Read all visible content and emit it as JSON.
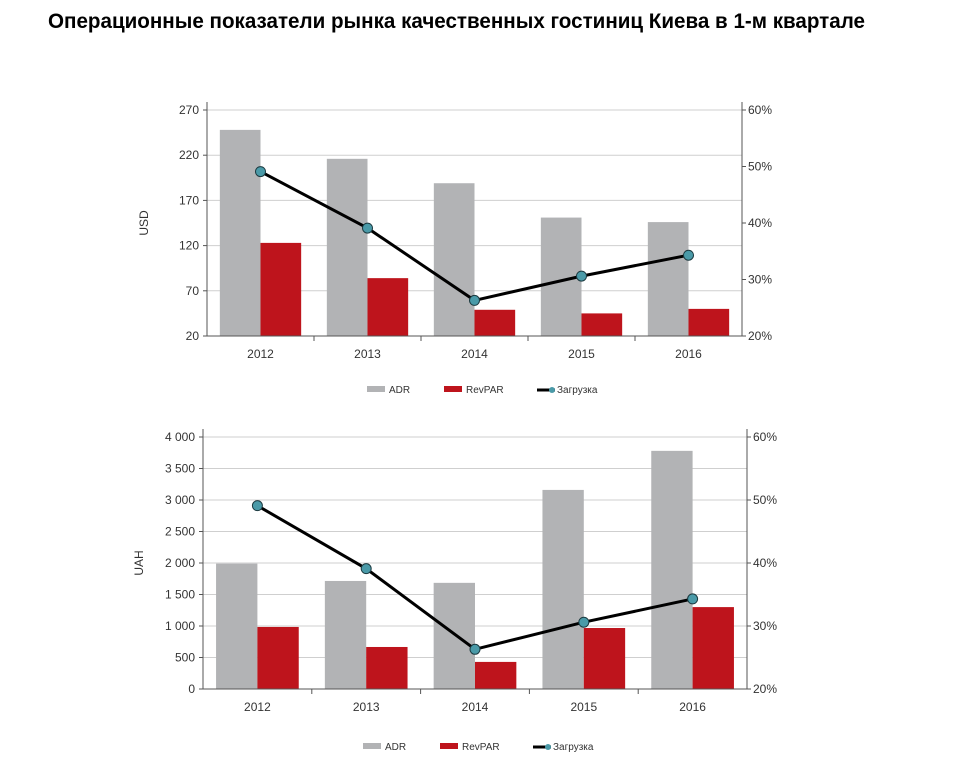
{
  "title": "Операционные показатели рынка качественных гостиниц Киева в 1-м квартале",
  "colors": {
    "adr": "#b2b3b5",
    "revpar": "#be141c",
    "load": "#000000",
    "marker": "#4a9aa8",
    "grid": "#cfcfcf"
  },
  "chart_data": [
    {
      "type": "bar",
      "title": "",
      "ylabel": "USD",
      "categories": [
        "2012",
        "2013",
        "2014",
        "2015",
        "2016"
      ],
      "ylim": [
        20,
        270
      ],
      "yticks": [
        20,
        70,
        120,
        170,
        220,
        270
      ],
      "ytick_labels": [
        "20",
        "70",
        "120",
        "170",
        "220",
        "270"
      ],
      "y2lim": [
        20,
        60
      ],
      "y2ticks": [
        20,
        30,
        40,
        50,
        60
      ],
      "y2tick_labels": [
        "20%",
        "30%",
        "40%",
        "50%",
        "60%"
      ],
      "grid": true,
      "legend_position": "bottom",
      "series": [
        {
          "name": "ADR",
          "type": "bar",
          "axis": "left",
          "values": [
            248,
            216,
            189,
            151,
            146
          ]
        },
        {
          "name": "RevPAR",
          "type": "bar",
          "axis": "left",
          "values": [
            123,
            84,
            49,
            45,
            50
          ]
        },
        {
          "name": "Загрузка",
          "type": "line",
          "axis": "right",
          "values": [
            49.1,
            39.1,
            26.3,
            30.6,
            34.3
          ]
        }
      ]
    },
    {
      "type": "bar",
      "title": "",
      "ylabel": "UAH",
      "categories": [
        "2012",
        "2013",
        "2014",
        "2015",
        "2016"
      ],
      "ylim": [
        0,
        4000
      ],
      "yticks": [
        0,
        500,
        1000,
        1500,
        2000,
        2500,
        3000,
        3500,
        4000
      ],
      "ytick_labels": [
        "0",
        "500",
        "1 000",
        "1 500",
        "2 000",
        "2 500",
        "3 000",
        "3 500",
        "4 000"
      ],
      "y2lim": [
        20,
        60
      ],
      "y2ticks": [
        20,
        30,
        40,
        50,
        60
      ],
      "y2tick_labels": [
        "20%",
        "30%",
        "40%",
        "50%",
        "60%"
      ],
      "grid": true,
      "legend_position": "bottom",
      "series": [
        {
          "name": "ADR",
          "type": "bar",
          "axis": "left",
          "values": [
            1990,
            1715,
            1685,
            3160,
            3780
          ]
        },
        {
          "name": "RevPAR",
          "type": "bar",
          "axis": "left",
          "values": [
            985,
            667,
            430,
            968,
            1300
          ]
        },
        {
          "name": "Загрузка",
          "type": "line",
          "axis": "right",
          "values": [
            49.1,
            39.1,
            26.3,
            30.6,
            34.3
          ]
        }
      ]
    }
  ]
}
